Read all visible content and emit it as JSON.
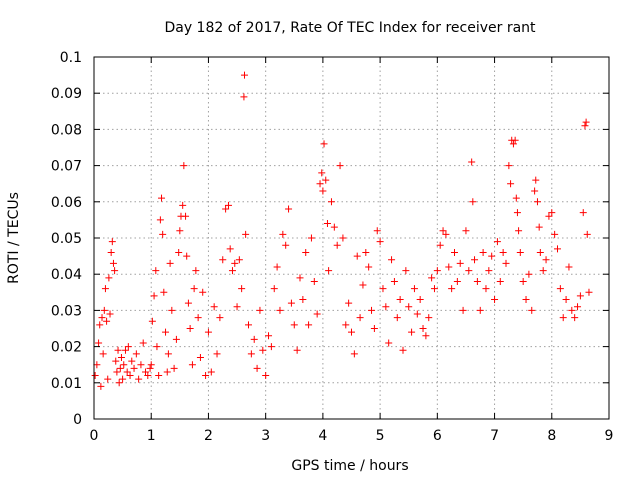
{
  "chart_data": {
    "type": "scatter",
    "title": "Day 182 of 2017, Rate Of TEC Index for receiver rant",
    "xlabel": "GPS time / hours",
    "ylabel": "ROTI / TECUs",
    "xlim": [
      0,
      9
    ],
    "ylim": [
      0,
      0.1
    ],
    "x_ticks": [
      0,
      1,
      2,
      3,
      4,
      5,
      6,
      7,
      8,
      9
    ],
    "x_tick_labels": [
      "0",
      "1",
      "2",
      "3",
      "4",
      "5",
      "6",
      "7",
      "8",
      "9"
    ],
    "y_ticks": [
      0,
      0.01,
      0.02,
      0.03,
      0.04,
      0.05,
      0.06,
      0.07,
      0.08,
      0.09,
      0.1
    ],
    "y_tick_labels": [
      "0",
      "0.01",
      "0.02",
      "0.03",
      "0.04",
      "0.05",
      "0.06",
      "0.07",
      "0.08",
      "0.09",
      "0.1"
    ],
    "grid": true,
    "marker": "plus",
    "color": "#ff0000",
    "points": [
      [
        0.02,
        0.012
      ],
      [
        0.05,
        0.015
      ],
      [
        0.08,
        0.021
      ],
      [
        0.1,
        0.026
      ],
      [
        0.12,
        0.009
      ],
      [
        0.14,
        0.028
      ],
      [
        0.16,
        0.018
      ],
      [
        0.18,
        0.03
      ],
      [
        0.2,
        0.036
      ],
      [
        0.22,
        0.027
      ],
      [
        0.24,
        0.011
      ],
      [
        0.26,
        0.039
      ],
      [
        0.28,
        0.029
      ],
      [
        0.3,
        0.046
      ],
      [
        0.32,
        0.049
      ],
      [
        0.34,
        0.043
      ],
      [
        0.36,
        0.041
      ],
      [
        0.38,
        0.016
      ],
      [
        0.4,
        0.013
      ],
      [
        0.42,
        0.019
      ],
      [
        0.44,
        0.01
      ],
      [
        0.46,
        0.014
      ],
      [
        0.48,
        0.017
      ],
      [
        0.5,
        0.011
      ],
      [
        0.52,
        0.015
      ],
      [
        0.55,
        0.019
      ],
      [
        0.58,
        0.013
      ],
      [
        0.6,
        0.02
      ],
      [
        0.63,
        0.012
      ],
      [
        0.66,
        0.016
      ],
      [
        0.7,
        0.014
      ],
      [
        0.74,
        0.018
      ],
      [
        0.78,
        0.011
      ],
      [
        0.82,
        0.015
      ],
      [
        0.86,
        0.021
      ],
      [
        0.9,
        0.013
      ],
      [
        0.94,
        0.012
      ],
      [
        0.98,
        0.014
      ],
      [
        1.0,
        0.015
      ],
      [
        1.02,
        0.027
      ],
      [
        1.05,
        0.034
      ],
      [
        1.08,
        0.041
      ],
      [
        1.1,
        0.02
      ],
      [
        1.13,
        0.012
      ],
      [
        1.16,
        0.055
      ],
      [
        1.18,
        0.061
      ],
      [
        1.2,
        0.051
      ],
      [
        1.22,
        0.035
      ],
      [
        1.25,
        0.024
      ],
      [
        1.28,
        0.013
      ],
      [
        1.3,
        0.018
      ],
      [
        1.33,
        0.043
      ],
      [
        1.36,
        0.03
      ],
      [
        1.4,
        0.014
      ],
      [
        1.44,
        0.022
      ],
      [
        1.48,
        0.046
      ],
      [
        1.5,
        0.052
      ],
      [
        1.52,
        0.056
      ],
      [
        1.55,
        0.059
      ],
      [
        1.57,
        0.07
      ],
      [
        1.6,
        0.056
      ],
      [
        1.62,
        0.045
      ],
      [
        1.65,
        0.032
      ],
      [
        1.68,
        0.025
      ],
      [
        1.72,
        0.015
      ],
      [
        1.75,
        0.036
      ],
      [
        1.78,
        0.041
      ],
      [
        1.82,
        0.028
      ],
      [
        1.86,
        0.017
      ],
      [
        1.9,
        0.035
      ],
      [
        1.95,
        0.012
      ],
      [
        2.0,
        0.024
      ],
      [
        2.05,
        0.013
      ],
      [
        2.1,
        0.031
      ],
      [
        2.15,
        0.018
      ],
      [
        2.2,
        0.028
      ],
      [
        2.25,
        0.044
      ],
      [
        2.3,
        0.058
      ],
      [
        2.35,
        0.059
      ],
      [
        2.38,
        0.047
      ],
      [
        2.42,
        0.041
      ],
      [
        2.46,
        0.043
      ],
      [
        2.5,
        0.031
      ],
      [
        2.54,
        0.044
      ],
      [
        2.58,
        0.036
      ],
      [
        2.62,
        0.089
      ],
      [
        2.63,
        0.095
      ],
      [
        2.65,
        0.051
      ],
      [
        2.7,
        0.026
      ],
      [
        2.75,
        0.018
      ],
      [
        2.8,
        0.022
      ],
      [
        2.85,
        0.014
      ],
      [
        2.9,
        0.03
      ],
      [
        2.95,
        0.019
      ],
      [
        3.0,
        0.012
      ],
      [
        3.05,
        0.023
      ],
      [
        3.1,
        0.02
      ],
      [
        3.15,
        0.036
      ],
      [
        3.2,
        0.042
      ],
      [
        3.25,
        0.03
      ],
      [
        3.3,
        0.051
      ],
      [
        3.35,
        0.048
      ],
      [
        3.4,
        0.058
      ],
      [
        3.45,
        0.032
      ],
      [
        3.5,
        0.026
      ],
      [
        3.55,
        0.019
      ],
      [
        3.6,
        0.039
      ],
      [
        3.65,
        0.033
      ],
      [
        3.7,
        0.046
      ],
      [
        3.75,
        0.026
      ],
      [
        3.8,
        0.05
      ],
      [
        3.85,
        0.038
      ],
      [
        3.9,
        0.029
      ],
      [
        3.95,
        0.065
      ],
      [
        3.98,
        0.068
      ],
      [
        4.0,
        0.063
      ],
      [
        4.02,
        0.076
      ],
      [
        4.05,
        0.066
      ],
      [
        4.08,
        0.054
      ],
      [
        4.1,
        0.041
      ],
      [
        4.15,
        0.06
      ],
      [
        4.2,
        0.053
      ],
      [
        4.25,
        0.048
      ],
      [
        4.3,
        0.07
      ],
      [
        4.35,
        0.05
      ],
      [
        4.4,
        0.026
      ],
      [
        4.45,
        0.032
      ],
      [
        4.5,
        0.024
      ],
      [
        4.55,
        0.018
      ],
      [
        4.6,
        0.045
      ],
      [
        4.65,
        0.028
      ],
      [
        4.7,
        0.037
      ],
      [
        4.75,
        0.046
      ],
      [
        4.8,
        0.042
      ],
      [
        4.85,
        0.03
      ],
      [
        4.9,
        0.025
      ],
      [
        4.95,
        0.052
      ],
      [
        5.0,
        0.049
      ],
      [
        5.05,
        0.036
      ],
      [
        5.1,
        0.031
      ],
      [
        5.15,
        0.021
      ],
      [
        5.2,
        0.044
      ],
      [
        5.25,
        0.038
      ],
      [
        5.3,
        0.028
      ],
      [
        5.35,
        0.033
      ],
      [
        5.4,
        0.019
      ],
      [
        5.45,
        0.041
      ],
      [
        5.5,
        0.031
      ],
      [
        5.55,
        0.024
      ],
      [
        5.6,
        0.036
      ],
      [
        5.65,
        0.029
      ],
      [
        5.7,
        0.033
      ],
      [
        5.75,
        0.025
      ],
      [
        5.8,
        0.023
      ],
      [
        5.85,
        0.028
      ],
      [
        5.9,
        0.039
      ],
      [
        5.95,
        0.036
      ],
      [
        6.0,
        0.041
      ],
      [
        6.05,
        0.048
      ],
      [
        6.1,
        0.052
      ],
      [
        6.15,
        0.051
      ],
      [
        6.2,
        0.042
      ],
      [
        6.25,
        0.036
      ],
      [
        6.3,
        0.046
      ],
      [
        6.35,
        0.038
      ],
      [
        6.4,
        0.043
      ],
      [
        6.45,
        0.03
      ],
      [
        6.5,
        0.052
      ],
      [
        6.55,
        0.041
      ],
      [
        6.6,
        0.071
      ],
      [
        6.62,
        0.06
      ],
      [
        6.65,
        0.044
      ],
      [
        6.7,
        0.038
      ],
      [
        6.75,
        0.03
      ],
      [
        6.8,
        0.046
      ],
      [
        6.85,
        0.036
      ],
      [
        6.9,
        0.041
      ],
      [
        6.95,
        0.045
      ],
      [
        7.0,
        0.033
      ],
      [
        7.05,
        0.049
      ],
      [
        7.1,
        0.038
      ],
      [
        7.15,
        0.046
      ],
      [
        7.2,
        0.043
      ],
      [
        7.25,
        0.07
      ],
      [
        7.28,
        0.065
      ],
      [
        7.3,
        0.077
      ],
      [
        7.33,
        0.076
      ],
      [
        7.36,
        0.077
      ],
      [
        7.38,
        0.061
      ],
      [
        7.4,
        0.057
      ],
      [
        7.42,
        0.052
      ],
      [
        7.45,
        0.046
      ],
      [
        7.5,
        0.038
      ],
      [
        7.55,
        0.033
      ],
      [
        7.6,
        0.04
      ],
      [
        7.65,
        0.03
      ],
      [
        7.7,
        0.063
      ],
      [
        7.72,
        0.066
      ],
      [
        7.75,
        0.06
      ],
      [
        7.78,
        0.053
      ],
      [
        7.8,
        0.046
      ],
      [
        7.85,
        0.041
      ],
      [
        7.9,
        0.044
      ],
      [
        7.95,
        0.056
      ],
      [
        8.0,
        0.057
      ],
      [
        8.05,
        0.051
      ],
      [
        8.1,
        0.047
      ],
      [
        8.15,
        0.036
      ],
      [
        8.2,
        0.028
      ],
      [
        8.25,
        0.033
      ],
      [
        8.3,
        0.042
      ],
      [
        8.35,
        0.03
      ],
      [
        8.4,
        0.028
      ],
      [
        8.45,
        0.031
      ],
      [
        8.5,
        0.034
      ],
      [
        8.55,
        0.057
      ],
      [
        8.58,
        0.081
      ],
      [
        8.6,
        0.082
      ],
      [
        8.62,
        0.051
      ],
      [
        8.65,
        0.035
      ]
    ]
  }
}
